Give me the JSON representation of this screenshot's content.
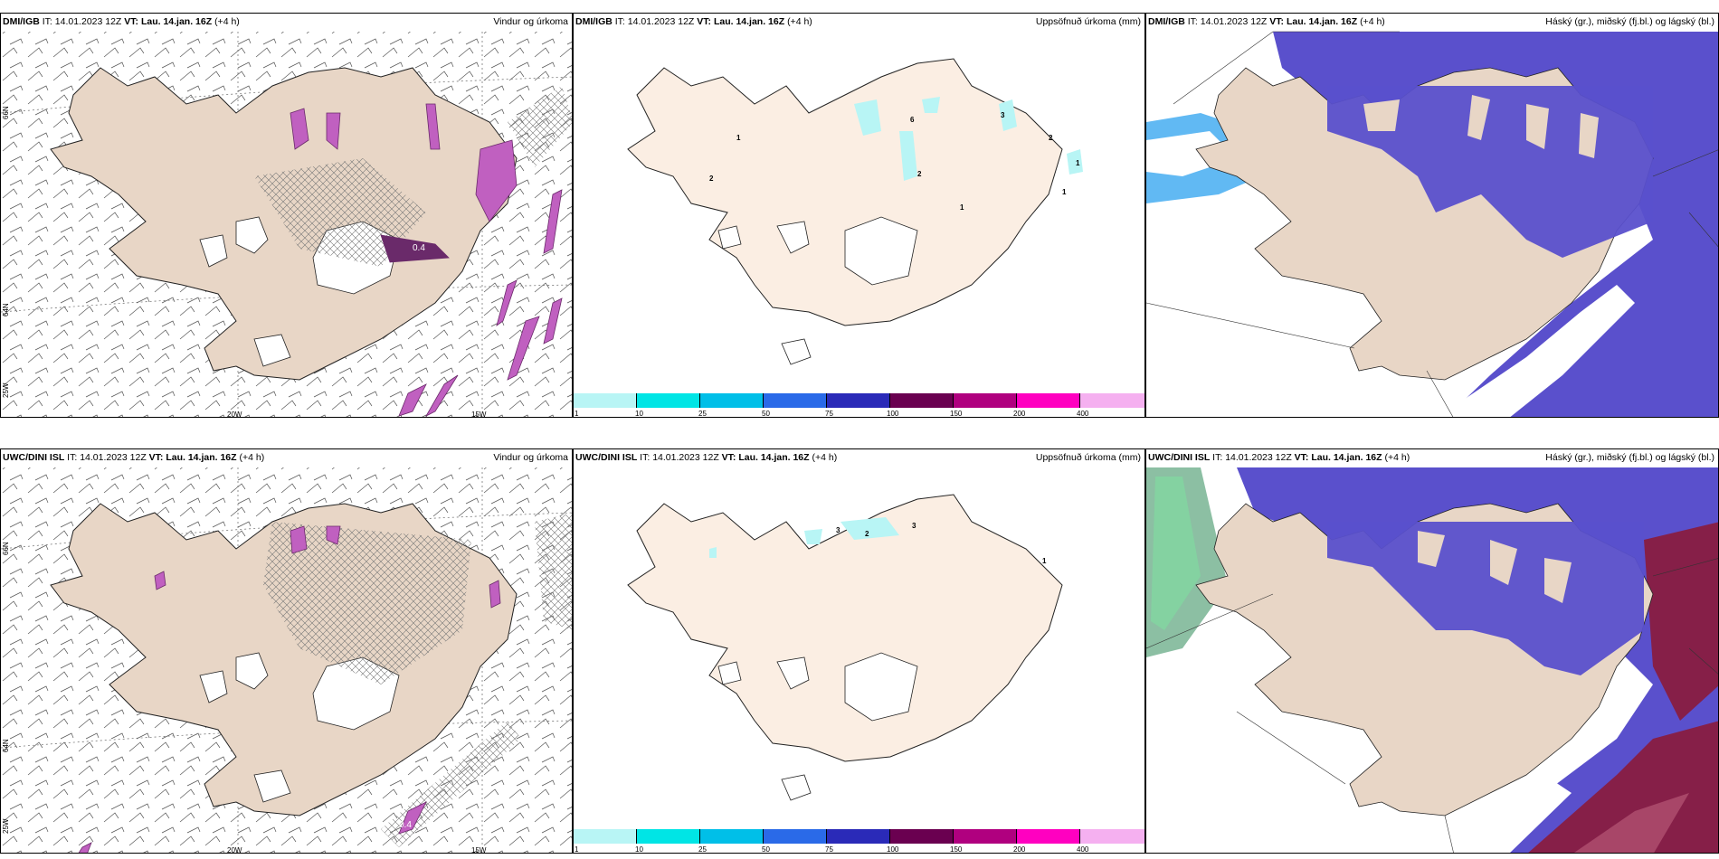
{
  "rows": [
    {
      "model": "DMI/IGB",
      "it_label": "IT:",
      "it_value": "14.01.2023 12Z",
      "vt_label": "VT:",
      "vt_value": "Lau. 14.jan. 16Z",
      "offset": "(+4 h)"
    },
    {
      "model": "UWC/DINI ISL",
      "it_label": "IT:",
      "it_value": "14.01.2023 12Z",
      "vt_label": "VT:",
      "vt_value": "Lau. 14.jan. 16Z",
      "offset": "(+4 h)"
    }
  ],
  "titles": {
    "wind": "Vindur og úrkoma",
    "precip": "Uppsöfnuð úrkoma (mm)",
    "cloud": "Háský (gr.), miðský (fj.bl.) og lágský (bl.)"
  },
  "lon_labels": [
    "20W",
    "15W"
  ],
  "lat_labels": [
    "66N",
    "64N",
    "25W"
  ],
  "colorbar": {
    "ticks": [
      "1",
      "10",
      "25",
      "50",
      "75",
      "100",
      "150",
      "200",
      "400"
    ],
    "colors": [
      "#b8f5f5",
      "#00e5e5",
      "#00bfe8",
      "#2a6ae8",
      "#2a2ab8",
      "#6a0050",
      "#b0007f",
      "#ff00c0",
      "#f5b0f0"
    ]
  },
  "precip_labels": {
    "dmi": [
      "1",
      "2",
      "6",
      "3",
      "2",
      "1",
      "1",
      "2",
      "1"
    ],
    "uwc": [
      "2",
      "3",
      "3",
      "1"
    ]
  },
  "wind_labels": {
    "dmi": "0.4",
    "uwc": "0.4"
  },
  "colors": {
    "land": "#e8d6c6",
    "land_light": "#fbeee3",
    "cloud_blue": "#5a50cc",
    "cloud_light": "#3aa8f0",
    "cloud_red": "#8b1a3a",
    "precip_pink": "#c060c0",
    "precip_dark": "#6a2a6a"
  }
}
